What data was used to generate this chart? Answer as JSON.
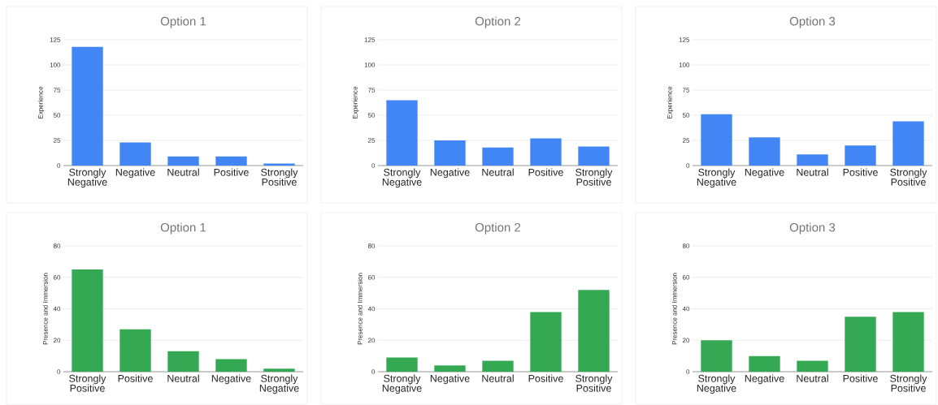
{
  "chart_data": [
    {
      "type": "bar",
      "title": "Option 1",
      "ylabel": "Experience",
      "categories": [
        "Strongly Negative",
        "Negative",
        "Neutral",
        "Positive",
        "Strongly Positive"
      ],
      "values": [
        118,
        23,
        9,
        9,
        2
      ],
      "color": "#4285f4",
      "ylim": [
        0,
        125
      ],
      "yticks": [
        0,
        25,
        50,
        75,
        100,
        125
      ],
      "grid": "y"
    },
    {
      "type": "bar",
      "title": "Option 2",
      "ylabel": "Experience",
      "categories": [
        "Strongly Negative",
        "Negative",
        "Neutral",
        "Positive",
        "Strongly Positive"
      ],
      "values": [
        65,
        25,
        18,
        27,
        19
      ],
      "color": "#4285f4",
      "ylim": [
        0,
        125
      ],
      "yticks": [
        0,
        25,
        50,
        75,
        100,
        125
      ],
      "grid": "y"
    },
    {
      "type": "bar",
      "title": "Option 3",
      "ylabel": "Experience",
      "categories": [
        "Strongly Negative",
        "Negative",
        "Neutral",
        "Positive",
        "Strongly Positive"
      ],
      "values": [
        51,
        28,
        11,
        20,
        44
      ],
      "color": "#4285f4",
      "ylim": [
        0,
        125
      ],
      "yticks": [
        0,
        25,
        50,
        75,
        100,
        125
      ],
      "grid": "y"
    },
    {
      "type": "bar",
      "title": "Option 1",
      "ylabel": "Presence and Immersion",
      "categories": [
        "Strongly Positive",
        "Positive",
        "Neutral",
        "Negative",
        "Strongly Negative"
      ],
      "values": [
        65,
        27,
        13,
        8,
        2
      ],
      "color": "#34a853",
      "ylim": [
        0,
        80
      ],
      "yticks": [
        0,
        20,
        40,
        60,
        80
      ],
      "grid": "y"
    },
    {
      "type": "bar",
      "title": "Option 2",
      "ylabel": "Presence and Immersion",
      "categories": [
        "Strongly Negative",
        "Negative",
        "Neutral",
        "Positive",
        "Strongly Positive"
      ],
      "values": [
        9,
        4,
        7,
        38,
        52
      ],
      "color": "#34a853",
      "ylim": [
        0,
        80
      ],
      "yticks": [
        0,
        20,
        40,
        60,
        80
      ],
      "grid": "y"
    },
    {
      "type": "bar",
      "title": "Option 3",
      "ylabel": "Presence and Immersion",
      "categories": [
        "Strongly Negative",
        "Negative",
        "Neutral",
        "Positive",
        "Strongly Positive"
      ],
      "values": [
        20,
        10,
        7,
        35,
        38
      ],
      "color": "#34a853",
      "ylim": [
        0,
        80
      ],
      "yticks": [
        0,
        20,
        40,
        60,
        80
      ],
      "grid": "y"
    }
  ]
}
